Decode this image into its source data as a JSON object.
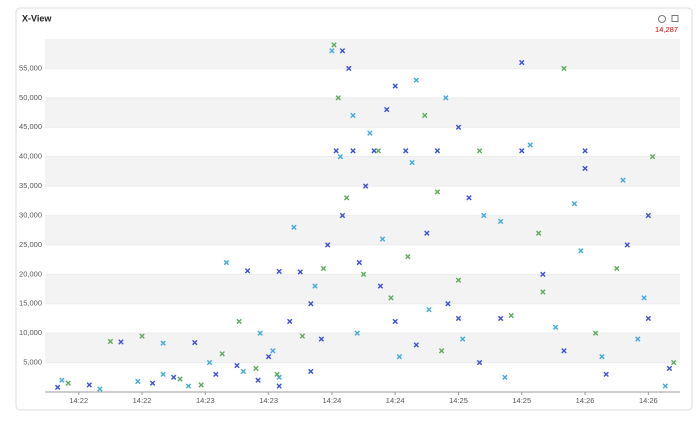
{
  "chart_data": {
    "type": "scatter",
    "title": "X-View",
    "count_label": "14,287",
    "xlim": [
      51704,
      52005
    ],
    "xticks": [
      {
        "value": 51720,
        "label": "14:22"
      },
      {
        "value": 51750,
        "label": "14:22"
      },
      {
        "value": 51780,
        "label": "14:23"
      },
      {
        "value": 51810,
        "label": "14:23"
      },
      {
        "value": 51840,
        "label": "14:24"
      },
      {
        "value": 51870,
        "label": "14:24"
      },
      {
        "value": 51900,
        "label": "14:25"
      },
      {
        "value": 51930,
        "label": "14:25"
      },
      {
        "value": 51960,
        "label": "14:26"
      },
      {
        "value": 51990,
        "label": "14:26"
      }
    ],
    "ylim": [
      0,
      60000
    ],
    "yticks": [
      {
        "value": 5000,
        "label": "5,000"
      },
      {
        "value": 10000,
        "label": "10,000"
      },
      {
        "value": 15000,
        "label": "15,000"
      },
      {
        "value": 20000,
        "label": "20,000"
      },
      {
        "value": 25000,
        "label": "25,000"
      },
      {
        "value": 30000,
        "label": "30,000"
      },
      {
        "value": 35000,
        "label": "35,000"
      },
      {
        "value": 40000,
        "label": "40,000"
      },
      {
        "value": 45000,
        "label": "45,000"
      },
      {
        "value": 50000,
        "label": "50,000"
      },
      {
        "value": 55000,
        "label": "55,000"
      }
    ],
    "grid": true,
    "series": [
      {
        "color": "#3b4fd8",
        "x": [
          51710,
          51725,
          51740,
          51755,
          51765,
          51775,
          51785,
          51795,
          51800,
          51810,
          51815,
          51820,
          51825,
          51830,
          51835,
          51838,
          51842,
          51845,
          51848,
          51850,
          51853,
          51856,
          51860,
          51863,
          51866,
          51870,
          51875,
          51880,
          51885,
          51890,
          51895,
          51900,
          51905,
          51910,
          51920,
          51930,
          51940,
          51950,
          51960,
          51970,
          51980,
          51990,
          52000,
          51845,
          51870,
          51900,
          51930,
          51960,
          51990,
          51805,
          51815,
          51830
        ],
        "values": [
          800,
          1200,
          8500,
          1500,
          2500,
          8400,
          3000,
          4500,
          20600,
          6000,
          20500,
          12000,
          20400,
          15000,
          9000,
          25000,
          41000,
          30000,
          55000,
          41000,
          22000,
          35000,
          41000,
          18000,
          48000,
          12000,
          41000,
          8000,
          27000,
          41000,
          15000,
          12500,
          33000,
          5000,
          12500,
          41000,
          20000,
          7000,
          41000,
          3000,
          25000,
          12500,
          4000,
          58000,
          52000,
          45000,
          56000,
          38000,
          30000,
          2000,
          1000,
          3500
        ]
      },
      {
        "color": "#3fa9e0",
        "x": [
          51712,
          51730,
          51748,
          51760,
          51772,
          51782,
          51790,
          51798,
          51806,
          51812,
          51822,
          51832,
          51840,
          51844,
          51852,
          51858,
          51864,
          51872,
          51878,
          51886,
          51894,
          51902,
          51912,
          51922,
          51934,
          51946,
          51958,
          51968,
          51978,
          51988,
          51998,
          51760,
          51850,
          51880,
          51920,
          51955,
          51985,
          51815
        ],
        "values": [
          2000,
          500,
          1800,
          8300,
          1000,
          5000,
          22000,
          3500,
          10000,
          7000,
          28000,
          18000,
          58000,
          40000,
          10000,
          44000,
          26000,
          6000,
          39000,
          14000,
          50000,
          9000,
          30000,
          2500,
          42000,
          11000,
          24000,
          6000,
          36000,
          16000,
          1000,
          3000,
          47000,
          53000,
          29000,
          32000,
          9000,
          2500
        ]
      },
      {
        "color": "#5aab5a",
        "x": [
          51715,
          51735,
          51750,
          51768,
          51778,
          51788,
          51796,
          51804,
          51814,
          51826,
          51836,
          51841,
          51847,
          51855,
          51862,
          51868,
          51876,
          51884,
          51892,
          51900,
          51910,
          51925,
          51938,
          51950,
          51965,
          51975,
          51992,
          52002,
          51843,
          51890,
          51940
        ],
        "values": [
          1500,
          8600,
          9500,
          2200,
          1200,
          6500,
          12000,
          4000,
          3000,
          9500,
          21000,
          59000,
          33000,
          20000,
          41000,
          16000,
          23000,
          47000,
          7000,
          19000,
          41000,
          13000,
          27000,
          55000,
          10000,
          21000,
          40000,
          5000,
          50000,
          34000,
          17000
        ]
      }
    ]
  }
}
